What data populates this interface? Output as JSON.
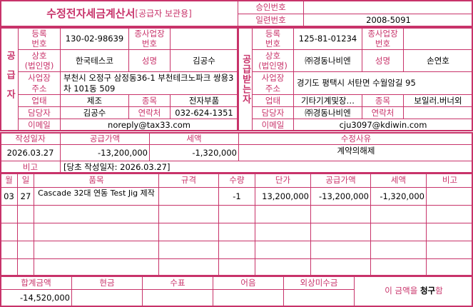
{
  "colors": {
    "accent": "#c8336a"
  },
  "header": {
    "title": "수정전자세금계산서",
    "subtitle": "[공급자 보관용]",
    "approval_label": "승인번호",
    "approval_value": "",
    "serial_label": "일련번호",
    "serial_value": "2008-5091"
  },
  "supplier": {
    "side_label": "공급자",
    "reg_label": "등록\n번호",
    "reg_value": "130-02-98639",
    "branch_label": "종사업장\n번호",
    "branch_value": "",
    "name_label": "상호\n(법인명)",
    "name_value": "한국테스코",
    "rep_label": "성명",
    "rep_value": "김공수",
    "addr_label": "사업장\n주소",
    "addr_value": "부천시 오정구 삼정동36-1 부천테크노파크 쌍용3차 101동 509",
    "type_label": "업태",
    "type_value": "제조",
    "item_label": "종목",
    "item_value": "전자부품",
    "contact_label": "담당자",
    "contact_value": "김공수",
    "phone_label": "연락처",
    "phone_value": "032-624-1351",
    "email_label": "이메일",
    "email_value": "noreply@tax33.com"
  },
  "buyer": {
    "side_label": "공급받는자",
    "reg_label": "등록\n번호",
    "reg_value": "125-81-01234",
    "branch_label": "종사업장\n번호",
    "branch_value": "",
    "name_label": "상호\n(법인명)",
    "name_value": "㈜경동나비엔",
    "rep_label": "성명",
    "rep_value": "손연호",
    "addr_label": "사업장\n주소",
    "addr_value": "경기도 평택시 서탄면 수월암길 95",
    "type_label": "업태",
    "type_value": "기타기계및장…",
    "item_label": "종목",
    "item_value": "보일러.버너외",
    "contact_label": "담당자",
    "contact_value": "㈜경동나비엔",
    "phone_label": "연락처",
    "phone_value": "",
    "email_label": "이메일",
    "email_value": "cju3097@kdiwin.com"
  },
  "summary": {
    "date_label": "작성일자",
    "date_value": "2026.03.27",
    "supply_label": "공급가액",
    "supply_value": "-13,200,000",
    "tax_label": "세액",
    "tax_value": "-1,320,000",
    "reason_label": "수정사유",
    "reason_value": "계약의해제",
    "note_label": "비고",
    "note_value": "[당초 작성일자: 2026.03.27]"
  },
  "items": {
    "headers": [
      "월",
      "일",
      "품목",
      "규격",
      "수량",
      "단가",
      "공급가액",
      "세액",
      "비고"
    ],
    "rows": [
      [
        "03",
        "27",
        "Cascade 32대 연동 Test Jig 제작",
        "",
        "-1",
        "13,200,000",
        "-13,200,000",
        "-1,320,000",
        ""
      ],
      [
        "",
        "",
        "",
        "",
        "",
        "",
        "",
        "",
        ""
      ],
      [
        "",
        "",
        "",
        "",
        "",
        "",
        "",
        "",
        ""
      ],
      [
        "",
        "",
        "",
        "",
        "",
        "",
        "",
        "",
        ""
      ],
      [
        "",
        "",
        "",
        "",
        "",
        "",
        "",
        "",
        ""
      ]
    ]
  },
  "totals": {
    "headers": [
      "합계금액",
      "현금",
      "수표",
      "어음",
      "외상미수금"
    ],
    "values": [
      "-14,520,000",
      "",
      "",
      "",
      ""
    ],
    "claim_prefix": "이 금액을 ",
    "claim_word": "청구",
    "claim_suffix": "함"
  }
}
